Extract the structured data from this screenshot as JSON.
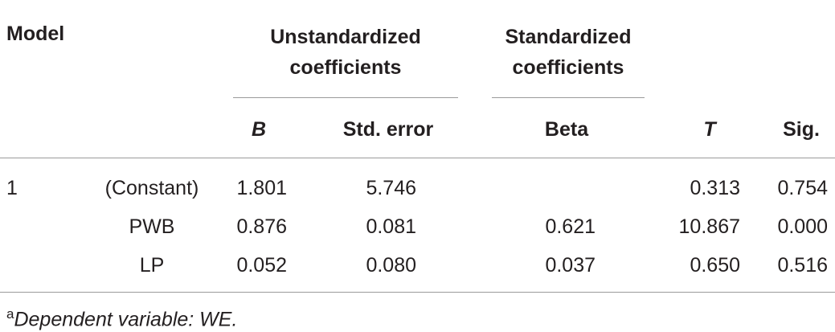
{
  "header": {
    "model": "Model",
    "groups": [
      "Unstandardized coefficients",
      "Standardized coefficients"
    ],
    "columns": [
      "B",
      "Std. error",
      "Beta",
      "T",
      "Sig."
    ]
  },
  "table": {
    "rows": [
      {
        "model": "1",
        "term": "(Constant)",
        "cells": [
          "1.801",
          "5.746",
          null,
          "0.313",
          "0.754"
        ]
      },
      {
        "model": null,
        "term": "PWB",
        "cells": [
          "0.876",
          "0.081",
          "0.621",
          "10.867",
          "0.000"
        ]
      },
      {
        "model": null,
        "term": "LP",
        "cells": [
          "0.052",
          "0.080",
          "0.037",
          "0.650",
          "0.516"
        ]
      }
    ]
  },
  "footnote": {
    "marker": "a",
    "text": "Dependent variable: WE."
  }
}
